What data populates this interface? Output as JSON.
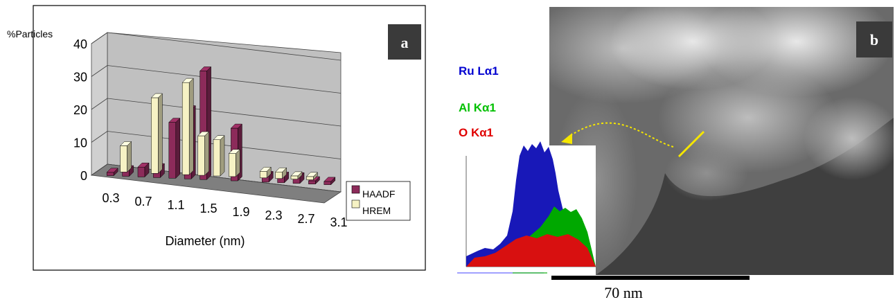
{
  "panel_a": {
    "label": "a",
    "chart_data": {
      "type": "bar",
      "title": "",
      "ylabel": "%Particles",
      "xlabel": "Diameter (nm)",
      "ylim": [
        0,
        40
      ],
      "yticks": [
        "0",
        "10",
        "20",
        "30",
        "40"
      ],
      "categories": [
        "0.3",
        "0.5",
        "0.7",
        "0.9",
        "1.1",
        "1.3",
        "1.5",
        "1.7",
        "1.9",
        "2.1",
        "2.3",
        "2.5",
        "2.7",
        "2.9",
        "3.1"
      ],
      "tick_labels": [
        "0.3",
        "0.7",
        "1.1",
        "1.5",
        "1.9",
        "2.3",
        "2.7",
        "3.1"
      ],
      "legend_position": "right",
      "series": [
        {
          "name": "HAADF",
          "color": "#8c2b5a",
          "values": [
            1,
            2,
            3,
            3,
            17,
            21,
            33,
            0,
            16,
            0,
            2,
            2,
            2,
            1,
            1
          ]
        },
        {
          "name": "HREM",
          "color": "#f6f2c4",
          "values": [
            0,
            8,
            0,
            23,
            0,
            28,
            12,
            11,
            7,
            0,
            2,
            2,
            1,
            1,
            0
          ]
        }
      ],
      "colors": {
        "wall": "#c0c0c0",
        "floor": "#7f7f7f"
      }
    }
  },
  "panel_b": {
    "label": "b",
    "legend": [
      {
        "text": "Ru Lα1",
        "color": "#0000d0"
      },
      {
        "text": "Al Kα1",
        "color": "#00c000"
      },
      {
        "text": "O Kα1",
        "color": "#e00000"
      }
    ],
    "scale_label": "70 nm",
    "colors": {
      "image_bg": "#3f3f3f",
      "linescan": "#f5e600"
    }
  }
}
